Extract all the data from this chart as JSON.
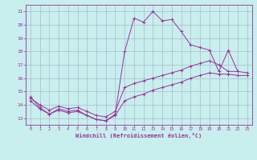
{
  "xlabel": "Windchill (Refroidissement éolien,°C)",
  "background_color": "#c8eeee",
  "grid_color": "#aabbcc",
  "line_color": "#993399",
  "spine_color": "#993399",
  "xlim": [
    -0.5,
    23.5
  ],
  "ylim": [
    12.5,
    21.5
  ],
  "xticks": [
    0,
    1,
    2,
    3,
    4,
    5,
    6,
    7,
    8,
    9,
    10,
    11,
    12,
    13,
    14,
    15,
    16,
    17,
    18,
    19,
    20,
    21,
    22,
    23
  ],
  "yticks": [
    13,
    14,
    15,
    16,
    17,
    18,
    19,
    20,
    21
  ],
  "line1_x": [
    0,
    1,
    2,
    3,
    4,
    5,
    6,
    7,
    8,
    9,
    10,
    11,
    12,
    13,
    14,
    15,
    16,
    17,
    18,
    19,
    20,
    21,
    22
  ],
  "line1_y": [
    14.6,
    13.8,
    13.3,
    13.7,
    13.5,
    13.6,
    13.2,
    12.9,
    12.8,
    13.3,
    18.0,
    20.5,
    20.2,
    21.0,
    20.3,
    20.4,
    19.5,
    18.5,
    18.3,
    18.1,
    16.5,
    18.1,
    16.5
  ],
  "line2_x": [
    0,
    1,
    2,
    3,
    4,
    5,
    6,
    7,
    8,
    9,
    10,
    11,
    12,
    13,
    14,
    15,
    16,
    17,
    18,
    19,
    20,
    21,
    22,
    23
  ],
  "line2_y": [
    14.5,
    14.0,
    13.6,
    13.9,
    13.7,
    13.8,
    13.5,
    13.2,
    13.1,
    13.5,
    15.3,
    15.6,
    15.8,
    16.0,
    16.2,
    16.4,
    16.6,
    16.9,
    17.1,
    17.3,
    17.0,
    16.5,
    16.5,
    16.4
  ],
  "line3_x": [
    0,
    1,
    2,
    3,
    4,
    5,
    6,
    7,
    8,
    9,
    10,
    11,
    12,
    13,
    14,
    15,
    16,
    17,
    18,
    19,
    20,
    21,
    22,
    23
  ],
  "line3_y": [
    14.3,
    13.7,
    13.3,
    13.6,
    13.4,
    13.5,
    13.2,
    12.9,
    12.8,
    13.2,
    14.3,
    14.6,
    14.8,
    15.1,
    15.3,
    15.5,
    15.7,
    16.0,
    16.2,
    16.4,
    16.3,
    16.3,
    16.2,
    16.2
  ]
}
